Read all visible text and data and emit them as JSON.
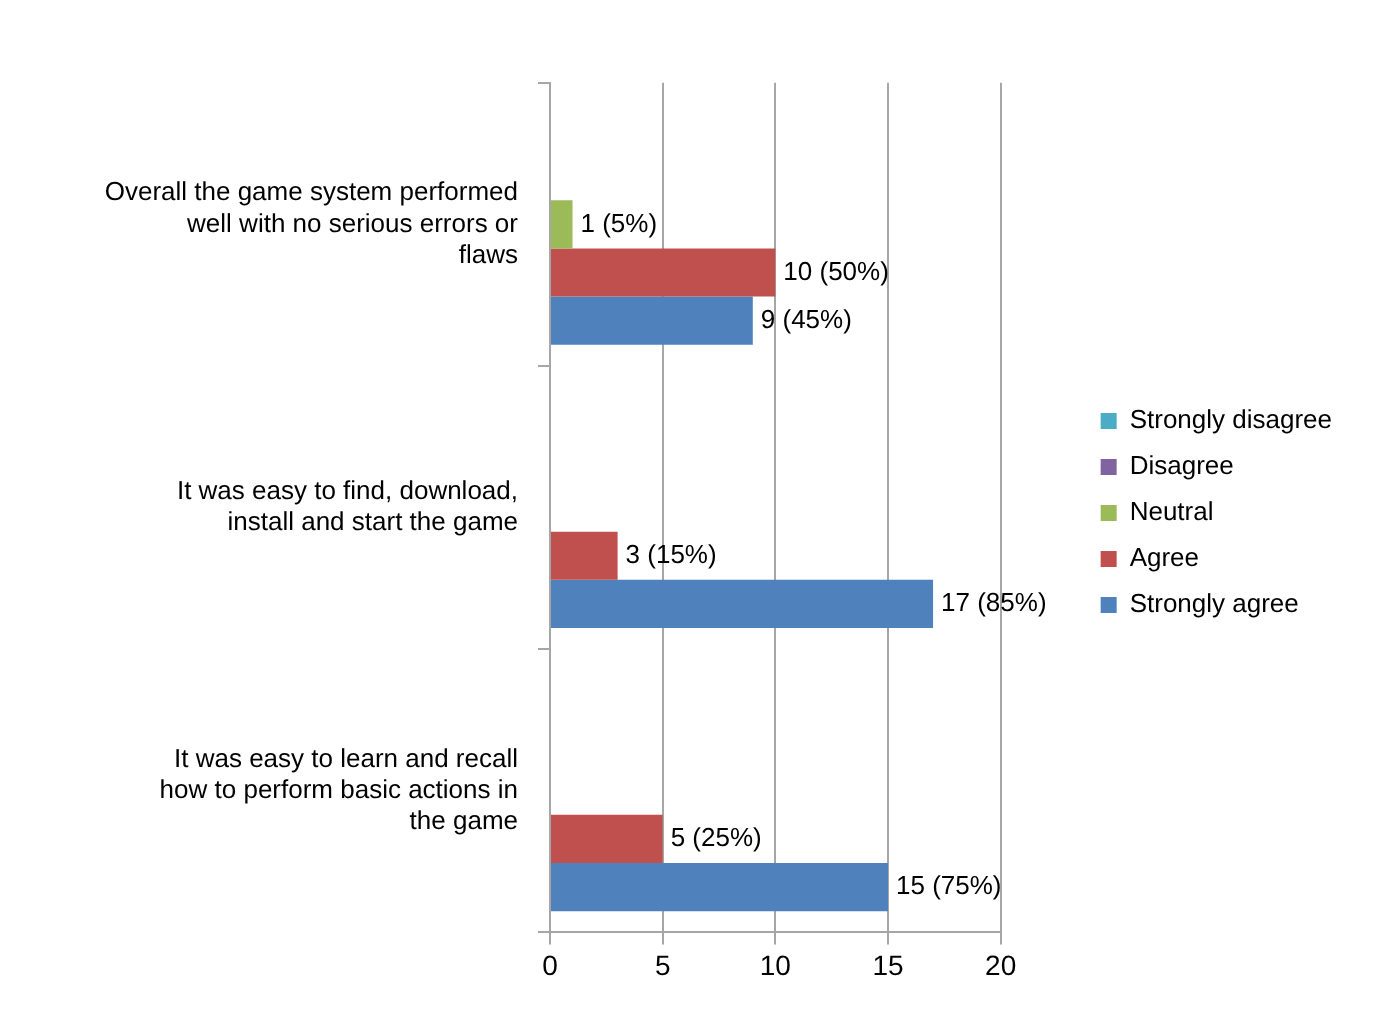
{
  "chart_data": {
    "type": "bar",
    "orientation": "horizontal",
    "categories": [
      "Overall the game system performed well with no serious errors or flaws",
      "It was easy to find, download, install and start the game",
      "It was easy to learn and recall how to perform basic actions in the game"
    ],
    "series": [
      {
        "name": "Strongly disagree",
        "color": "#4bacc6",
        "values": [
          null,
          null,
          null
        ]
      },
      {
        "name": "Disagree",
        "color": "#8064a2",
        "values": [
          null,
          null,
          null
        ]
      },
      {
        "name": "Neutral",
        "color": "#9bbb59",
        "values": [
          1,
          null,
          null
        ],
        "value_labels": [
          "1 (5%)",
          null,
          null
        ]
      },
      {
        "name": "Agree",
        "color": "#c0504d",
        "values": [
          10,
          3,
          5
        ],
        "value_labels": [
          "10 (50%)",
          "3 (15%)",
          "5 (25%)"
        ]
      },
      {
        "name": "Strongly agree",
        "color": "#4f81bd",
        "values": [
          9,
          17,
          15
        ],
        "value_labels": [
          "9 (45%)",
          "17 (85%)",
          "15 (75%)"
        ]
      }
    ],
    "xlim": [
      0,
      20
    ],
    "xticks": [
      0,
      5,
      10,
      15,
      20
    ],
    "grid": "x",
    "legend": "right"
  }
}
